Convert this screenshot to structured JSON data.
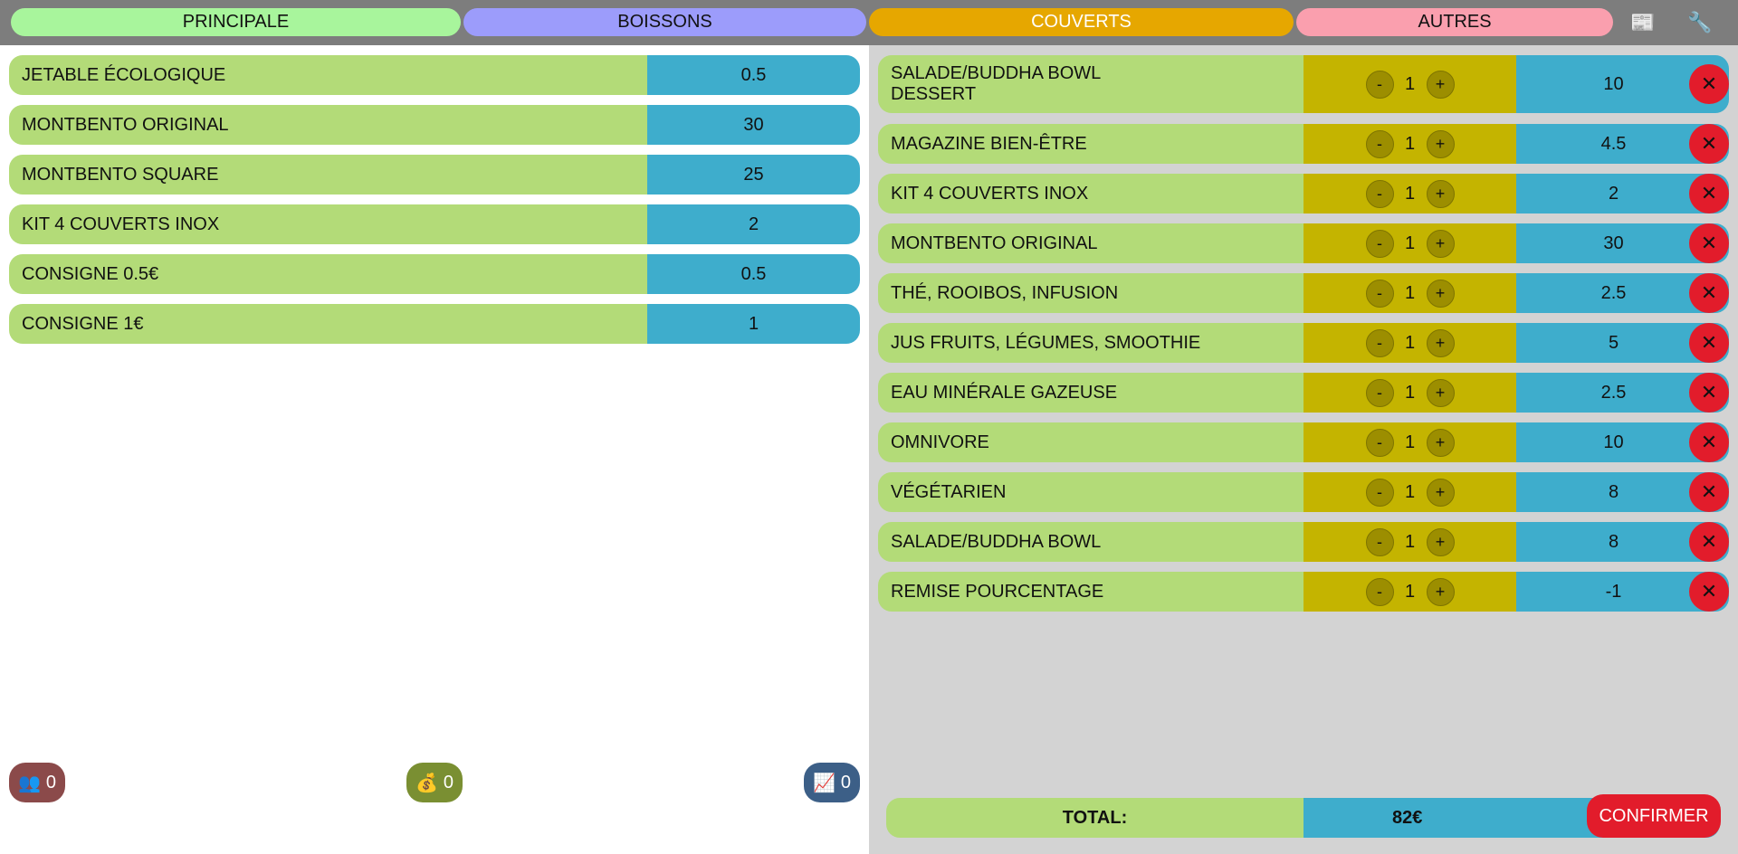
{
  "tabs": [
    {
      "label": "PRINCIPALE",
      "color": "#a8f59c"
    },
    {
      "label": "BOISSONS",
      "color": "#9c9cfb"
    },
    {
      "label": "COUVERTS",
      "color": "#e6a700"
    },
    {
      "label": "AUTRES",
      "color": "#fa9fae"
    }
  ],
  "toolbar": {
    "news_icon": "📰",
    "wrench_icon": "🔧"
  },
  "products": [
    {
      "name": "JETABLE ÉCOLOGIQUE",
      "price": "0.5"
    },
    {
      "name": "MONTBENTO ORIGINAL",
      "price": "30"
    },
    {
      "name": "MONTBENTO SQUARE",
      "price": "25"
    },
    {
      "name": "KIT 4 COUVERTS INOX",
      "price": "2"
    },
    {
      "name": "CONSIGNE 0.5€",
      "price": "0.5"
    },
    {
      "name": "CONSIGNE 1€",
      "price": "1"
    }
  ],
  "stats": {
    "users": {
      "icon": "👥",
      "value": "0"
    },
    "money": {
      "icon": "💰",
      "value": "0"
    },
    "chart": {
      "icon": "📈",
      "value": "0"
    }
  },
  "cart": {
    "items": [
      {
        "name_line1": "SALADE/BUDDHA BOWL",
        "name_line2": "DESSERT",
        "qty": "1",
        "price": "10"
      },
      {
        "name_line1": "MAGAZINE BIEN-ÊTRE",
        "qty": "1",
        "price": "4.5"
      },
      {
        "name_line1": "KIT 4 COUVERTS INOX",
        "qty": "1",
        "price": "2"
      },
      {
        "name_line1": "MONTBENTO ORIGINAL",
        "qty": "1",
        "price": "30"
      },
      {
        "name_line1": "THÉ, ROOIBOS, INFUSION",
        "qty": "1",
        "price": "2.5"
      },
      {
        "name_line1": "JUS FRUITS, LÉGUMES, SMOOTHIE",
        "qty": "1",
        "price": "5"
      },
      {
        "name_line1": "EAU MINÉRALE GAZEUSE",
        "qty": "1",
        "price": "2.5"
      },
      {
        "name_line1": "OMNIVORE",
        "qty": "1",
        "price": "10"
      },
      {
        "name_line1": "VÉGÉTARIEN",
        "qty": "1",
        "price": "8"
      },
      {
        "name_line1": "SALADE/BUDDHA BOWL",
        "qty": "1",
        "price": "8"
      },
      {
        "name_line1": "REMISE POURCENTAGE",
        "qty": "1",
        "price": "-1"
      }
    ],
    "minus_label": "-",
    "plus_label": "+",
    "remove_label": "✕",
    "total_label": "TOTAL:",
    "total_value": "82€",
    "confirm_label": "CONFIRMER"
  }
}
